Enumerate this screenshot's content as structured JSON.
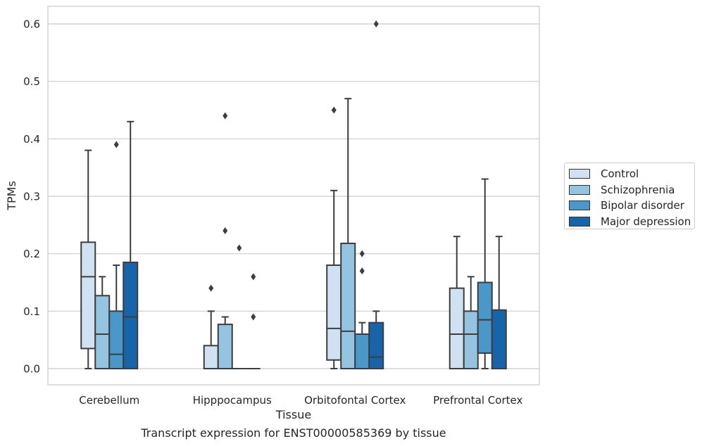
{
  "caption": "Transcript expression for ENST00000585369 by tissue",
  "chart_data": {
    "type": "box",
    "title": "",
    "xlabel": "Tissue",
    "ylabel": "TPMs",
    "ylim": [
      -0.03,
      0.63
    ],
    "yticks": [
      "0.0",
      "0.1",
      "0.2",
      "0.3",
      "0.4",
      "0.5",
      "0.6"
    ],
    "grid": true,
    "legend_position": "right",
    "categories": [
      "Cerebellum",
      "Hipppocampus",
      "Orbitofontal Cortex",
      "Prefrontal Cortex"
    ],
    "series": [
      {
        "name": "Control",
        "color": "#d0e1f2",
        "boxes": [
          {
            "q1": 0.035,
            "median": 0.16,
            "q3": 0.22,
            "low": 0.0,
            "high": 0.38,
            "outliers": []
          },
          {
            "q1": 0.0,
            "median": 0.0,
            "q3": 0.04,
            "low": 0.0,
            "high": 0.1,
            "outliers": [
              0.14
            ]
          },
          {
            "q1": 0.015,
            "median": 0.07,
            "q3": 0.18,
            "low": 0.0,
            "high": 0.31,
            "outliers": [
              0.45
            ]
          },
          {
            "q1": 0.0,
            "median": 0.06,
            "q3": 0.14,
            "low": 0.0,
            "high": 0.23,
            "outliers": []
          }
        ]
      },
      {
        "name": "Schizophrenia",
        "color": "#94c4df",
        "boxes": [
          {
            "q1": 0.0,
            "median": 0.06,
            "q3": 0.127,
            "low": 0.0,
            "high": 0.16,
            "outliers": []
          },
          {
            "q1": 0.0,
            "median": 0.0,
            "q3": 0.077,
            "low": 0.0,
            "high": 0.09,
            "outliers": [
              0.24,
              0.44
            ]
          },
          {
            "q1": 0.0,
            "median": 0.065,
            "q3": 0.218,
            "low": 0.0,
            "high": 0.47,
            "outliers": []
          },
          {
            "q1": 0.0,
            "median": 0.06,
            "q3": 0.1,
            "low": 0.0,
            "high": 0.16,
            "outliers": []
          }
        ]
      },
      {
        "name": "Bipolar disorder",
        "color": "#4a98c9",
        "boxes": [
          {
            "q1": 0.0,
            "median": 0.025,
            "q3": 0.1,
            "low": 0.0,
            "high": 0.18,
            "outliers": [
              0.39
            ]
          },
          {
            "q1": 0.0,
            "median": 0.0,
            "q3": 0.0,
            "low": 0.0,
            "high": 0.0,
            "outliers": [
              0.21
            ]
          },
          {
            "q1": 0.0,
            "median": 0.0,
            "q3": 0.06,
            "low": 0.0,
            "high": 0.08,
            "outliers": [
              0.17,
              0.2
            ]
          },
          {
            "q1": 0.027,
            "median": 0.085,
            "q3": 0.15,
            "low": 0.0,
            "high": 0.33,
            "outliers": []
          }
        ]
      },
      {
        "name": "Major depression",
        "color": "#1764ab",
        "boxes": [
          {
            "q1": 0.0,
            "median": 0.09,
            "q3": 0.185,
            "low": 0.0,
            "high": 0.43,
            "outliers": []
          },
          {
            "q1": 0.0,
            "median": 0.0,
            "q3": 0.0,
            "low": 0.0,
            "high": 0.0,
            "outliers": [
              0.09,
              0.16
            ]
          },
          {
            "q1": 0.0,
            "median": 0.02,
            "q3": 0.08,
            "low": 0.0,
            "high": 0.1,
            "outliers": [
              0.6
            ]
          },
          {
            "q1": 0.0,
            "median": 0.0,
            "q3": 0.102,
            "low": 0.0,
            "high": 0.23,
            "outliers": []
          }
        ]
      }
    ]
  }
}
